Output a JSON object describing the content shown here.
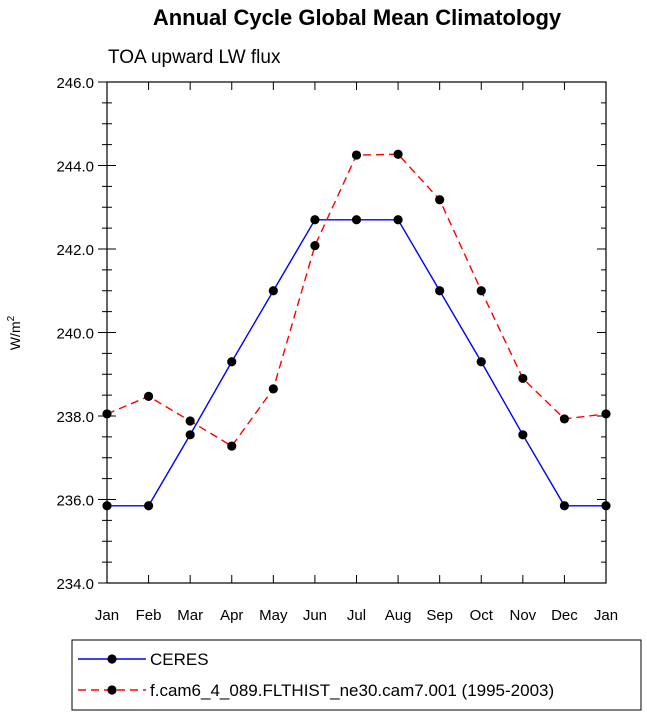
{
  "chart_data": {
    "type": "line",
    "title": "Annual Cycle Global Mean Climatology",
    "subtitle": "TOA upward LW flux",
    "ylabel": "W/m",
    "ylabel_sup": "2",
    "xlabel": "",
    "categories": [
      "Jan",
      "Feb",
      "Mar",
      "Apr",
      "May",
      "Jun",
      "Jul",
      "Aug",
      "Sep",
      "Oct",
      "Nov",
      "Dec",
      "Jan"
    ],
    "ylim": [
      234.0,
      246.0
    ],
    "yticks": [
      234.0,
      236.0,
      238.0,
      240.0,
      242.0,
      244.0,
      246.0
    ],
    "ytick_labels": [
      "234.0",
      "236.0",
      "238.0",
      "240.0",
      "242.0",
      "244.0",
      "246.0"
    ],
    "grid": false,
    "legend_position": "bottom",
    "series": [
      {
        "name": "CERES",
        "color": "#0000ff",
        "dash": "solid",
        "values": [
          235.85,
          235.85,
          237.55,
          239.3,
          241.0,
          242.7,
          242.7,
          242.7,
          241.0,
          239.3,
          237.55,
          235.85,
          235.85
        ]
      },
      {
        "name": "f.cam6_4_089.FLTHIST_ne30.cam7.001 (1995-2003)",
        "color": "#ff0000",
        "dash": "dashed",
        "values": [
          238.05,
          238.47,
          237.88,
          237.28,
          238.65,
          242.08,
          244.25,
          244.27,
          243.18,
          241.0,
          238.9,
          237.93,
          238.05
        ]
      }
    ]
  }
}
